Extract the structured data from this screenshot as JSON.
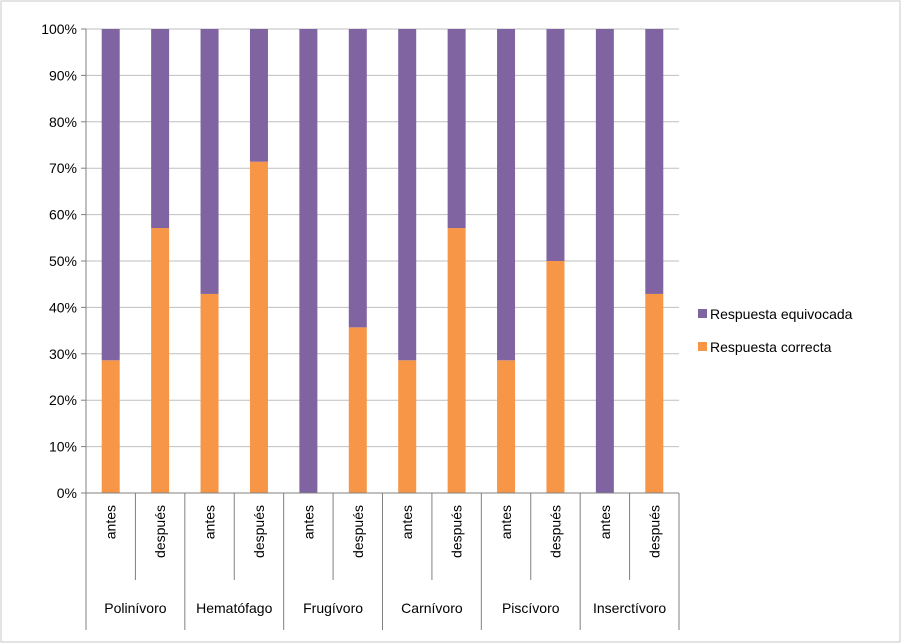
{
  "chart_data": {
    "type": "bar",
    "stacked": true,
    "percent": true,
    "groups": [
      "Polinívoro",
      "Hematófago",
      "Frugívoro",
      "Carnívoro",
      "Piscívoro",
      "Inserctívoro"
    ],
    "categories": [
      "antes",
      "después",
      "antes",
      "después",
      "antes",
      "después",
      "antes",
      "después",
      "antes",
      "después",
      "antes",
      "después"
    ],
    "series": [
      {
        "name": "Respuesta correcta",
        "color": "#f79646",
        "values": [
          28.6,
          57.1,
          42.9,
          71.4,
          0,
          35.7,
          28.6,
          57.1,
          28.6,
          50.0,
          0,
          42.9
        ]
      },
      {
        "name": "Respuesta equivocada",
        "color": "#8064a2",
        "values": [
          71.4,
          42.9,
          57.1,
          28.6,
          100,
          64.3,
          71.4,
          42.9,
          71.4,
          50.0,
          100,
          57.1
        ]
      }
    ],
    "yticks": [
      "0%",
      "10%",
      "20%",
      "30%",
      "40%",
      "50%",
      "60%",
      "70%",
      "80%",
      "90%",
      "100%"
    ],
    "ylim": [
      0,
      100
    ],
    "grid": true,
    "legend": {
      "position": "right",
      "entries": [
        "Respuesta equivocada",
        "Respuesta correcta"
      ],
      "colors": [
        "#8064a2",
        "#f79646"
      ]
    }
  }
}
